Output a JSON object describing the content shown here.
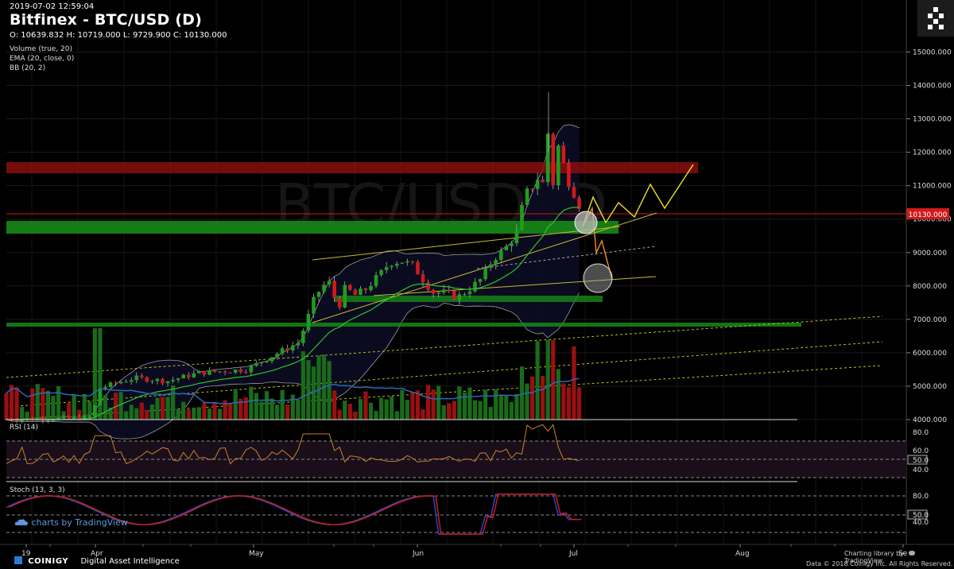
{
  "header": {
    "timestamp": "2019-07-02 12:59:04",
    "title": "Bitfinex - BTC/USD (D)",
    "ohlc": "O: 10639.832 H: 10719.000 L: 9729.900 C: 10130.000",
    "indicators": [
      "Volume (true, 20)",
      "EMA (20, close, 0)",
      "BB (20, 2)"
    ],
    "watermark": "BTC/USD, D"
  },
  "price_axis": {
    "ticks": [
      "15000.000",
      "14000.000",
      "13000.000",
      "12000.000",
      "11000.000",
      "10000.000",
      "9000.000",
      "8000.000",
      "7000.000",
      "6000.000",
      "5000.000",
      "4000.000"
    ],
    "current_price_label": "10130.000"
  },
  "rsi_panel": {
    "label": "RSI (14)",
    "ticks": [
      "80.0",
      "60.0",
      "50.0",
      "40.0"
    ]
  },
  "stoch_panel": {
    "label": "Stoch (13, 3, 3)",
    "ticks": [
      "80.0",
      "50.0",
      "40.0"
    ]
  },
  "time_axis": {
    "labels": [
      "19",
      "Apr",
      "May",
      "Jun",
      "Jul",
      "Aug",
      "Se"
    ]
  },
  "branding": {
    "tv_watermark": "charts by TradingView",
    "coinigy": "COINIGY",
    "coinigy_tag": "Digital Asset Intelligence",
    "charting_lib": "Charting library by",
    "tv_name": "TradingView",
    "copyright": "Data © 2018  Coinigy Inc. All Rights Reserved."
  },
  "colors": {
    "up": "#1e9e1e",
    "down": "#d01a1a",
    "ema": "#2bc42b",
    "bb": "#9a9aa8",
    "rsi": "#c8822e",
    "stoch_k": "#2a45c8",
    "stoch_d": "#c81e1e",
    "projection_yellow": "#f0e020",
    "projection_orange": "#f09020"
  },
  "chart_data": {
    "type": "candlestick",
    "title": "Bitfinex - BTC/USD (D)",
    "ylim": [
      4000,
      15000
    ],
    "last": {
      "open": 10639.832,
      "high": 10719.0,
      "low": 9729.9,
      "close": 10130.0
    },
    "candles_approx_close": [
      {
        "date": "2019-03-20",
        "close": 4060
      },
      {
        "date": "2019-04-01",
        "close": 4150
      },
      {
        "date": "2019-04-02",
        "close": 4900
      },
      {
        "date": "2019-04-10",
        "close": 5250
      },
      {
        "date": "2019-04-25",
        "close": 5400
      },
      {
        "date": "2019-05-05",
        "close": 5800
      },
      {
        "date": "2019-05-10",
        "close": 6400
      },
      {
        "date": "2019-05-13",
        "close": 7000
      },
      {
        "date": "2019-05-15",
        "close": 8000
      },
      {
        "date": "2019-05-17",
        "close": 7300
      },
      {
        "date": "2019-05-25",
        "close": 8100
      },
      {
        "date": "2019-05-30",
        "close": 8600
      },
      {
        "date": "2019-06-05",
        "close": 7700
      },
      {
        "date": "2019-06-12",
        "close": 8000
      },
      {
        "date": "2019-06-18",
        "close": 9100
      },
      {
        "date": "2019-06-22",
        "close": 10300
      },
      {
        "date": "2019-06-26",
        "close": 12900
      },
      {
        "date": "2019-06-27",
        "close": 11100
      },
      {
        "date": "2019-06-29",
        "close": 11900
      },
      {
        "date": "2019-07-02",
        "close": 10130
      }
    ]
  }
}
